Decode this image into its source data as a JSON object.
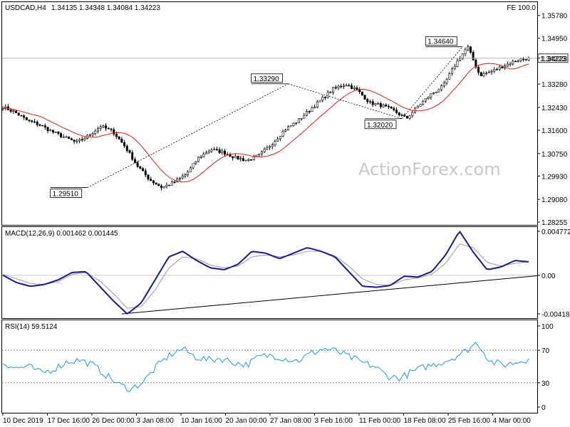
{
  "chart_data": {
    "type": "candlestick",
    "symbol": "USDCAD,H4",
    "ohlc_header": "1.34135 1.34348 1.34084 1.34223",
    "expert_label": "FE 100.0",
    "watermark": "ActionForex.com",
    "price_axis": {
      "ticks": [
        "1.35780",
        "1.34950",
        "1.34223",
        "1.33280",
        "1.32430",
        "1.31600",
        "1.30750",
        "1.29930",
        "1.29080",
        "1.28255"
      ],
      "range": [
        1.28255,
        1.3598
      ],
      "current_price": 1.34223,
      "current_price_label": "1.34223"
    },
    "time_axis": [
      "10 Dec 2019",
      "17 Dec 16:00",
      "26 Dec 00:00",
      "3 Jan 08:00",
      "10 Jan 16:00",
      "20 Jan 00:00",
      "27 Jan 08:00",
      "3 Feb 16:00",
      "11 Feb 00:00",
      "18 Feb 08:00",
      "25 Feb 16:00",
      "4 Mar 00:00"
    ],
    "annotations": [
      {
        "label": "1.29510",
        "value": 1.2951
      },
      {
        "label": "1.33290",
        "value": 1.3329
      },
      {
        "label": "1.32020",
        "value": 1.3202
      },
      {
        "label": "1.34640",
        "value": 1.3464
      }
    ],
    "price_anchors": [
      1.3245,
      1.3225,
      1.3195,
      1.318,
      1.3155,
      1.3135,
      1.3115,
      1.314,
      1.3175,
      1.3155,
      1.31,
      1.303,
      1.298,
      1.2951,
      1.297,
      1.3,
      1.306,
      1.309,
      1.308,
      1.306,
      1.305,
      1.307,
      1.311,
      1.316,
      1.319,
      1.323,
      1.327,
      1.331,
      1.3329,
      1.3305,
      1.326,
      1.325,
      1.323,
      1.3202,
      1.325,
      1.329,
      1.332,
      1.34,
      1.3464,
      1.336,
      1.3375,
      1.3395,
      1.3415,
      1.3422
    ],
    "macd": {
      "label": "MACD(12,26,9) 0.001462 0.001445",
      "ticks": [
        "0.004772",
        "0.00",
        "-0.004186"
      ],
      "range": [
        -0.004186,
        0.004772
      ],
      "main_anchors": [
        0.0,
        -0.0008,
        -0.0012,
        -0.001,
        -0.0005,
        0.0003,
        0.0004,
        -0.0012,
        -0.0028,
        -0.0042,
        -0.003,
        -0.0005,
        0.002,
        0.0026,
        0.0016,
        0.0008,
        0.0006,
        0.0012,
        0.0026,
        0.0024,
        0.0018,
        0.0024,
        0.003,
        0.0026,
        0.002,
        0.0004,
        -0.0012,
        -0.0013,
        -0.0011,
        -0.0001,
        -0.0002,
        0.0004,
        0.0022,
        0.0048,
        0.0025,
        0.0006,
        0.0009,
        0.0016,
        0.00146
      ],
      "signal_anchors": [
        0.0001,
        -0.0004,
        -0.0009,
        -0.001,
        -0.0007,
        0.0001,
        0.0003,
        -0.0006,
        -0.002,
        -0.0036,
        -0.0034,
        -0.0016,
        0.0008,
        0.002,
        0.0018,
        0.0011,
        0.0008,
        0.001,
        0.002,
        0.0022,
        0.002,
        0.0022,
        0.0026,
        0.0026,
        0.0021,
        0.001,
        -0.0004,
        -0.001,
        -0.0011,
        -0.0005,
        -0.0003,
        0.0001,
        0.0013,
        0.0034,
        0.003,
        0.0014,
        0.001,
        0.0013,
        0.00145
      ]
    },
    "rsi": {
      "label": "RSI(14) 59.5124",
      "ticks": [
        "100",
        "70",
        "30",
        "0"
      ],
      "range": [
        0,
        100
      ],
      "levels": [
        70,
        30
      ],
      "anchors": [
        55,
        48,
        50,
        42,
        47,
        56,
        58,
        52,
        40,
        28,
        22,
        32,
        50,
        64,
        72,
        62,
        58,
        60,
        55,
        52,
        62,
        64,
        60,
        57,
        66,
        72,
        69,
        62,
        55,
        50,
        38,
        36,
        44,
        50,
        54,
        60,
        68,
        80,
        56,
        52,
        55,
        59.5
      ]
    }
  }
}
